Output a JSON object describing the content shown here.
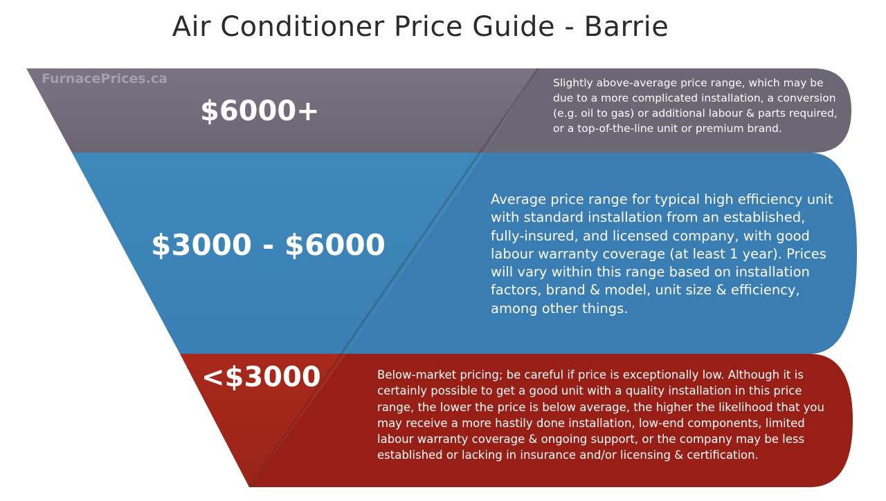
{
  "title": "Air Conditioner Price Guide - Barrie",
  "watermark": "FurnacePrices.ca",
  "tiers": [
    {
      "price": "$6000+",
      "description": "Slightly above-average price range, which may be due to a more complicated installation, a conversion (e.g. oil to gas) or additional labour & parts required, or a top-of-the-line unit or premium brand.",
      "color": "#6f6877",
      "color_dark": "#5f5966"
    },
    {
      "price": "$3000 - $6000",
      "description": "Average price range for typical high efficiency unit with standard installation from an established, fully-insured, and licensed company, with good labour warranty coverage (at least 1 year). Prices will vary within this range based on installation factors, brand & model, unit size & efficiency, among other things.",
      "color": "#4088b8",
      "color_dark": "#3578ab"
    },
    {
      "price": "<$3000",
      "description": "Below-market pricing; be careful if price is exceptionally low. Although it is certainly possible to get a good unit with a quality installation in this price range, the lower the price is below average, the higher the likelihood that you may receive a more hastily done installation, low-end components, limited labour warranty coverage & ongoing support, or the company may be less established or lacking in insurance and/or licensing & certification.",
      "color": "#a52a1f",
      "color_dark": "#8f2218"
    }
  ]
}
